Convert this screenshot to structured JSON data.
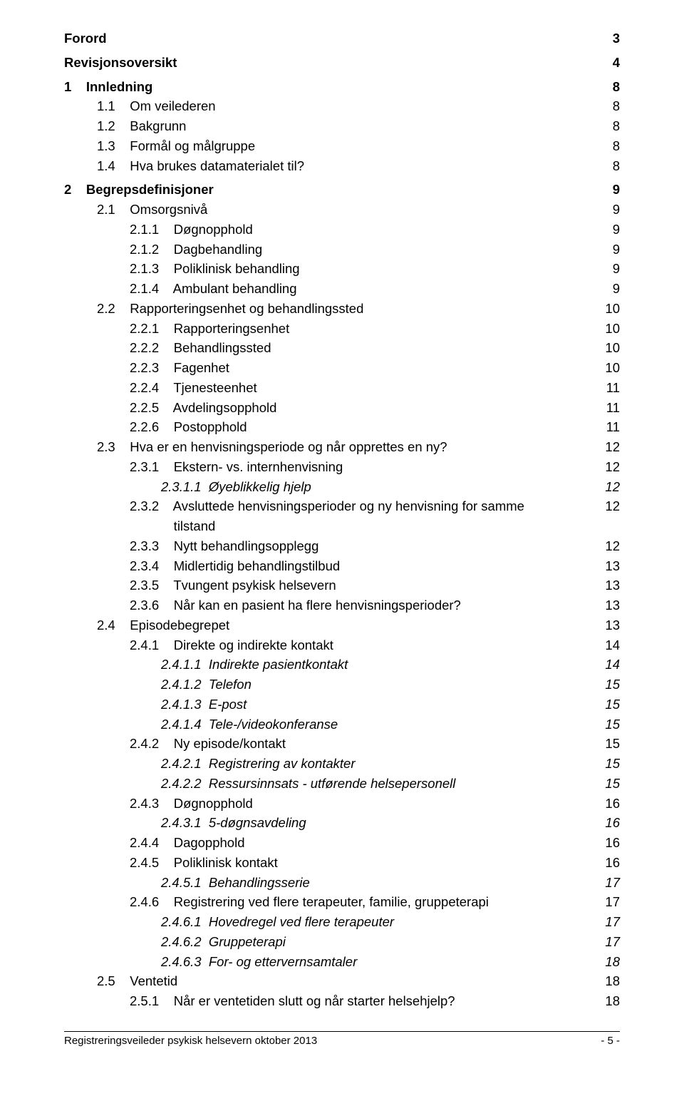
{
  "toc": [
    {
      "label": "Forord",
      "page": "3",
      "indent": 0,
      "bold": true,
      "italic": false,
      "gapAfter": true
    },
    {
      "label": "Revisjonsoversikt",
      "page": "4",
      "indent": 0,
      "bold": true,
      "italic": false,
      "gapAfter": true
    },
    {
      "label": "1    Innledning",
      "page": "8",
      "indent": 1,
      "bold": true,
      "italic": false,
      "gapAfter": false
    },
    {
      "label": "1.1    Om veilederen",
      "page": "8",
      "indent": 2,
      "bold": false,
      "italic": false,
      "gapAfter": false
    },
    {
      "label": "1.2    Bakgrunn",
      "page": "8",
      "indent": 2,
      "bold": false,
      "italic": false,
      "gapAfter": false
    },
    {
      "label": "1.3    Formål og målgruppe",
      "page": "8",
      "indent": 2,
      "bold": false,
      "italic": false,
      "gapAfter": false
    },
    {
      "label": "1.4    Hva brukes datamaterialet til?",
      "page": "8",
      "indent": 2,
      "bold": false,
      "italic": false,
      "gapAfter": true
    },
    {
      "label": "2    Begrepsdefinisjoner",
      "page": "9",
      "indent": 1,
      "bold": true,
      "italic": false,
      "gapAfter": false
    },
    {
      "label": "2.1    Omsorgsnivå",
      "page": "9",
      "indent": 2,
      "bold": false,
      "italic": false,
      "gapAfter": false
    },
    {
      "label": "2.1.1    Døgnopphold",
      "page": "9",
      "indent": 3,
      "bold": false,
      "italic": false,
      "gapAfter": false
    },
    {
      "label": "2.1.2    Dagbehandling",
      "page": "9",
      "indent": 3,
      "bold": false,
      "italic": false,
      "gapAfter": false
    },
    {
      "label": "2.1.3    Poliklinisk behandling",
      "page": "9",
      "indent": 3,
      "bold": false,
      "italic": false,
      "gapAfter": false
    },
    {
      "label": "2.1.4    Ambulant behandling",
      "page": "9",
      "indent": 3,
      "bold": false,
      "italic": false,
      "gapAfter": false
    },
    {
      "label": "2.2    Rapporteringsenhet og behandlingssted",
      "page": "10",
      "indent": 2,
      "bold": false,
      "italic": false,
      "gapAfter": false
    },
    {
      "label": "2.2.1    Rapporteringsenhet",
      "page": "10",
      "indent": 3,
      "bold": false,
      "italic": false,
      "gapAfter": false
    },
    {
      "label": "2.2.2    Behandlingssted",
      "page": "10",
      "indent": 3,
      "bold": false,
      "italic": false,
      "gapAfter": false
    },
    {
      "label": "2.2.3    Fagenhet",
      "page": "10",
      "indent": 3,
      "bold": false,
      "italic": false,
      "gapAfter": false
    },
    {
      "label": "2.2.4    Tjenesteenhet",
      "page": "11",
      "indent": 3,
      "bold": false,
      "italic": false,
      "gapAfter": false
    },
    {
      "label": "2.2.5    Avdelingsopphold",
      "page": "11",
      "indent": 3,
      "bold": false,
      "italic": false,
      "gapAfter": false
    },
    {
      "label": "2.2.6    Postopphold",
      "page": "11",
      "indent": 3,
      "bold": false,
      "italic": false,
      "gapAfter": false
    },
    {
      "label": "2.3    Hva er en henvisningsperiode og når opprettes en ny?",
      "page": "12",
      "indent": 2,
      "bold": false,
      "italic": false,
      "gapAfter": false
    },
    {
      "label": "2.3.1    Ekstern- vs. internhenvisning",
      "page": "12",
      "indent": 3,
      "bold": false,
      "italic": false,
      "gapAfter": false
    },
    {
      "label": "2.3.1.1  Øyeblikkelig hjelp",
      "page": "12",
      "indent": 4,
      "bold": false,
      "italic": true,
      "gapAfter": false
    },
    {
      "label": "2.3.2    Avsluttede henvisningsperioder og ny henvisning for samme\n            tilstand",
      "page": "12",
      "indent": 3,
      "bold": false,
      "italic": false,
      "gapAfter": false
    },
    {
      "label": "2.3.3    Nytt behandlingsopplegg",
      "page": "12",
      "indent": 3,
      "bold": false,
      "italic": false,
      "gapAfter": false
    },
    {
      "label": "2.3.4    Midlertidig behandlingstilbud",
      "page": "13",
      "indent": 3,
      "bold": false,
      "italic": false,
      "gapAfter": false
    },
    {
      "label": "2.3.5    Tvungent psykisk helsevern",
      "page": "13",
      "indent": 3,
      "bold": false,
      "italic": false,
      "gapAfter": false
    },
    {
      "label": "2.3.6    Når kan en pasient ha flere henvisningsperioder?",
      "page": "13",
      "indent": 3,
      "bold": false,
      "italic": false,
      "gapAfter": false
    },
    {
      "label": "2.4    Episodebegrepet",
      "page": "13",
      "indent": 2,
      "bold": false,
      "italic": false,
      "gapAfter": false
    },
    {
      "label": "2.4.1    Direkte og indirekte kontakt",
      "page": "14",
      "indent": 3,
      "bold": false,
      "italic": false,
      "gapAfter": false
    },
    {
      "label": "2.4.1.1  Indirekte pasientkontakt",
      "page": "14",
      "indent": 4,
      "bold": false,
      "italic": true,
      "gapAfter": false
    },
    {
      "label": "2.4.1.2  Telefon",
      "page": "15",
      "indent": 4,
      "bold": false,
      "italic": true,
      "gapAfter": false
    },
    {
      "label": "2.4.1.3  E-post",
      "page": "15",
      "indent": 4,
      "bold": false,
      "italic": true,
      "gapAfter": false
    },
    {
      "label": "2.4.1.4  Tele-/videokonferanse",
      "page": "15",
      "indent": 4,
      "bold": false,
      "italic": true,
      "gapAfter": false
    },
    {
      "label": "2.4.2    Ny episode/kontakt",
      "page": "15",
      "indent": 3,
      "bold": false,
      "italic": false,
      "gapAfter": false
    },
    {
      "label": "2.4.2.1  Registrering av kontakter",
      "page": "15",
      "indent": 4,
      "bold": false,
      "italic": true,
      "gapAfter": false
    },
    {
      "label": "2.4.2.2  Ressursinnsats - utførende helsepersonell",
      "page": "15",
      "indent": 4,
      "bold": false,
      "italic": true,
      "gapAfter": false
    },
    {
      "label": "2.4.3    Døgnopphold",
      "page": "16",
      "indent": 3,
      "bold": false,
      "italic": false,
      "gapAfter": false
    },
    {
      "label": "2.4.3.1  5-døgnsavdeling",
      "page": "16",
      "indent": 4,
      "bold": false,
      "italic": true,
      "gapAfter": false
    },
    {
      "label": "2.4.4    Dagopphold",
      "page": "16",
      "indent": 3,
      "bold": false,
      "italic": false,
      "gapAfter": false
    },
    {
      "label": "2.4.5    Poliklinisk kontakt",
      "page": "16",
      "indent": 3,
      "bold": false,
      "italic": false,
      "gapAfter": false
    },
    {
      "label": "2.4.5.1  Behandlingsserie",
      "page": "17",
      "indent": 4,
      "bold": false,
      "italic": true,
      "gapAfter": false
    },
    {
      "label": "2.4.6    Registrering ved flere terapeuter, familie, gruppeterapi",
      "page": "17",
      "indent": 3,
      "bold": false,
      "italic": false,
      "gapAfter": false
    },
    {
      "label": "2.4.6.1  Hovedregel ved flere terapeuter",
      "page": "17",
      "indent": 4,
      "bold": false,
      "italic": true,
      "gapAfter": false
    },
    {
      "label": "2.4.6.2  Gruppeterapi",
      "page": "17",
      "indent": 4,
      "bold": false,
      "italic": true,
      "gapAfter": false
    },
    {
      "label": "2.4.6.3  For- og ettervernsamtaler",
      "page": "18",
      "indent": 4,
      "bold": false,
      "italic": true,
      "gapAfter": false
    },
    {
      "label": "2.5    Ventetid",
      "page": "18",
      "indent": 2,
      "bold": false,
      "italic": false,
      "gapAfter": false
    },
    {
      "label": "2.5.1    Når er ventetiden slutt og når starter helsehjelp?",
      "page": "18",
      "indent": 3,
      "bold": false,
      "italic": false,
      "gapAfter": false
    }
  ],
  "footer": {
    "left": "Registreringsveileder psykisk helsevern oktober 2013",
    "right": "- 5 -"
  }
}
